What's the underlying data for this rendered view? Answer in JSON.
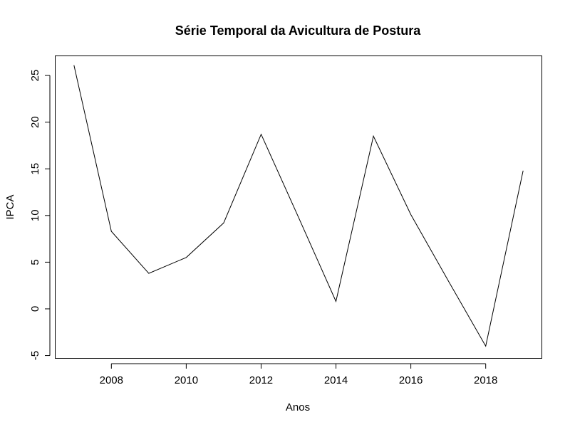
{
  "chart_data": {
    "type": "line",
    "title": "Série Temporal da Avicultura de Postura",
    "xlabel": "Anos",
    "ylabel": "IPCA",
    "x": [
      2007,
      2008,
      2009,
      2010,
      2011,
      2012,
      2013,
      2014,
      2015,
      2016,
      2017,
      2018,
      2019
    ],
    "series": [
      {
        "values": [
          26.1,
          8.3,
          3.8,
          5.5,
          9.2,
          18.7,
          9.8,
          0.8,
          18.5,
          10.1,
          3.0,
          -4.0,
          14.8
        ]
      }
    ],
    "xlim": [
      2006.5,
      2019.5
    ],
    "ylim": [
      -5.3,
      27.1
    ],
    "xticks": [
      2008,
      2010,
      2012,
      2014,
      2016,
      2018
    ],
    "yticks": [
      -5,
      0,
      5,
      10,
      15,
      20,
      25
    ],
    "grid": false,
    "line_color": "#000000"
  }
}
